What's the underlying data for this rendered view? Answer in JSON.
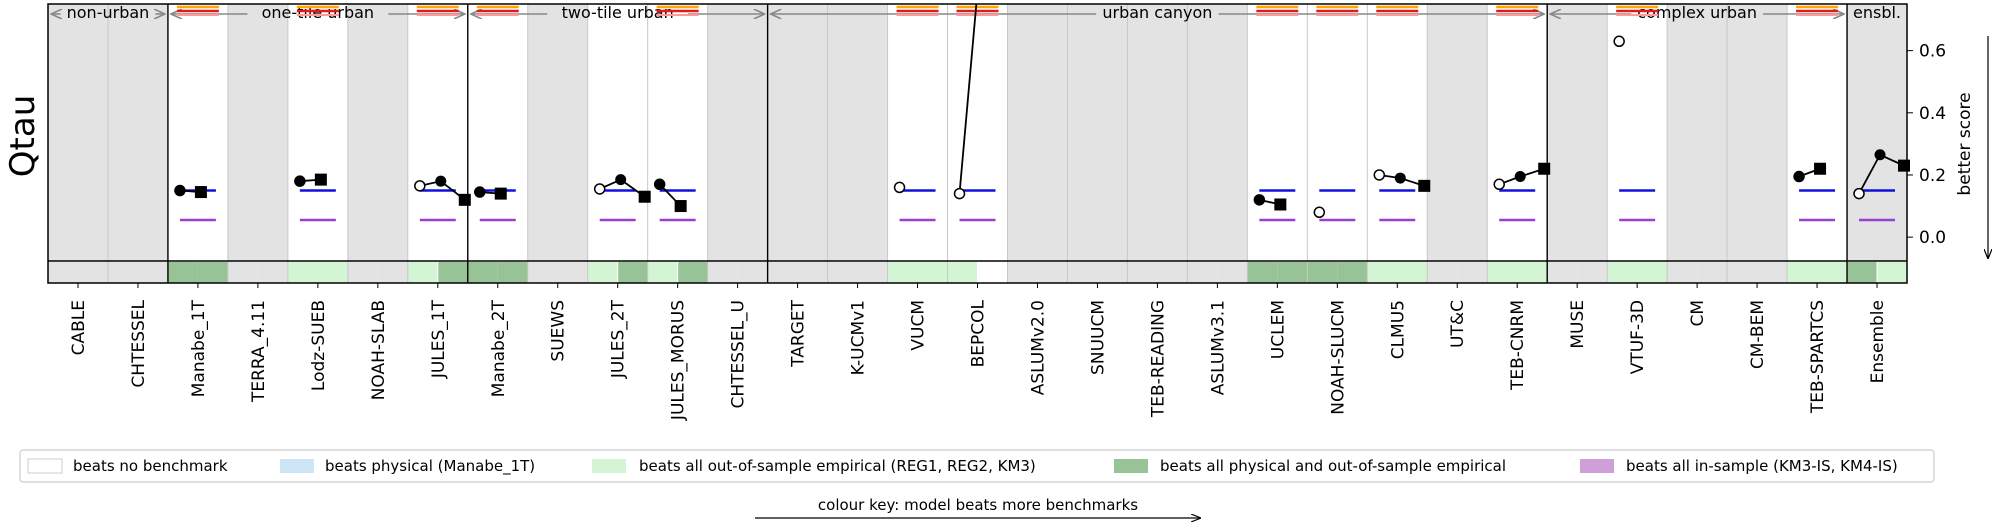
{
  "chart_data": {
    "type": "scatter",
    "ylabel_left": "Qtau",
    "ylabel_right": "better score",
    "ylim": [
      -0.08,
      0.75
    ],
    "yticks": [
      "0.0",
      "0.2",
      "0.4",
      "0.6"
    ],
    "ytick_values": [
      0.0,
      0.2,
      0.4,
      0.6
    ],
    "groups": [
      {
        "label": "non-urban",
        "start": 0,
        "end": 2
      },
      {
        "label": "one-tile urban",
        "start": 2,
        "end": 7
      },
      {
        "label": "two-tile urban",
        "start": 7,
        "end": 12
      },
      {
        "label": "urban canyon",
        "start": 12,
        "end": 25
      },
      {
        "label": "complex urban",
        "start": 25,
        "end": 30
      },
      {
        "label": "ensbl.",
        "start": 30,
        "end": 31
      }
    ],
    "models": [
      {
        "name": "CABLE",
        "bg": "grey",
        "segs": [
          "g",
          "g"
        ],
        "markers": false,
        "p1": null,
        "p2": null,
        "p3": null,
        "p1open": false
      },
      {
        "name": "CHTESSEL",
        "bg": "grey",
        "segs": [
          "g",
          "g"
        ],
        "markers": false,
        "p1": null,
        "p2": null,
        "p3": null,
        "p1open": false
      },
      {
        "name": "Manabe_1T",
        "bg": "white",
        "segs": [
          "d",
          "d"
        ],
        "markers": true,
        "p1": 0.15,
        "p2": 0.145,
        "p3": null,
        "p1open": false
      },
      {
        "name": "TERRA_4.11",
        "bg": "grey",
        "segs": [
          "g",
          "g"
        ],
        "markers": false,
        "p1": null,
        "p2": null,
        "p3": null,
        "p1open": false
      },
      {
        "name": "Lodz-SUEB",
        "bg": "white",
        "segs": [
          "l",
          "l"
        ],
        "markers": true,
        "p1": 0.18,
        "p2": 0.185,
        "p3": null,
        "p1open": false
      },
      {
        "name": "NOAH-SLAB",
        "bg": "grey",
        "segs": [
          "g",
          "g"
        ],
        "markers": false,
        "p1": null,
        "p2": null,
        "p3": null,
        "p1open": false
      },
      {
        "name": "JULES_1T",
        "bg": "white",
        "segs": [
          "l",
          "d"
        ],
        "markers": true,
        "p1": 0.165,
        "p2": 0.18,
        "p3": 0.12,
        "p1open": true
      },
      {
        "name": "Manabe_2T",
        "bg": "white",
        "segs": [
          "d",
          "d"
        ],
        "markers": true,
        "p1": 0.145,
        "p2": 0.14,
        "p3": null,
        "p1open": false
      },
      {
        "name": "SUEWS",
        "bg": "grey",
        "segs": [
          "g",
          "g"
        ],
        "markers": false,
        "p1": null,
        "p2": null,
        "p3": null,
        "p1open": false
      },
      {
        "name": "JULES_2T",
        "bg": "white",
        "segs": [
          "l",
          "d"
        ],
        "markers": true,
        "p1": 0.155,
        "p2": 0.185,
        "p3": 0.13,
        "p1open": true
      },
      {
        "name": "JULES_MORUS",
        "bg": "white",
        "segs": [
          "l",
          "d"
        ],
        "markers": true,
        "p1": 0.17,
        "p2": 0.1,
        "p3": null,
        "p1open": false
      },
      {
        "name": "CHTESSEL_U",
        "bg": "grey",
        "segs": [
          "g",
          "g"
        ],
        "markers": false,
        "p1": null,
        "p2": null,
        "p3": null,
        "p1open": false
      },
      {
        "name": "TARGET",
        "bg": "grey",
        "segs": [
          "g",
          "g"
        ],
        "markers": false,
        "p1": null,
        "p2": null,
        "p3": null,
        "p1open": false
      },
      {
        "name": "K-UCMv1",
        "bg": "grey",
        "segs": [
          "g",
          "g"
        ],
        "markers": false,
        "p1": null,
        "p2": null,
        "p3": null,
        "p1open": false
      },
      {
        "name": "VUCM",
        "bg": "white",
        "segs": [
          "l",
          "l"
        ],
        "markers": true,
        "p1": 0.16,
        "p2": null,
        "p3": null,
        "p1open": true
      },
      {
        "name": "BEPCOL",
        "bg": "white",
        "segs": [
          "l",
          "w"
        ],
        "markers": true,
        "p1": 0.14,
        "p2": 0.9,
        "p3": null,
        "p1open": true
      },
      {
        "name": "ASLUMv2.0",
        "bg": "grey",
        "segs": [
          "g",
          "g"
        ],
        "markers": false,
        "p1": null,
        "p2": null,
        "p3": null,
        "p1open": false
      },
      {
        "name": "SNUUCM",
        "bg": "grey",
        "segs": [
          "g",
          "g"
        ],
        "markers": false,
        "p1": null,
        "p2": null,
        "p3": null,
        "p1open": false
      },
      {
        "name": "TEB-READING",
        "bg": "grey",
        "segs": [
          "g",
          "g"
        ],
        "markers": false,
        "p1": null,
        "p2": null,
        "p3": null,
        "p1open": false
      },
      {
        "name": "ASLUMv3.1",
        "bg": "grey",
        "segs": [
          "g",
          "g"
        ],
        "markers": false,
        "p1": null,
        "p2": null,
        "p3": null,
        "p1open": false
      },
      {
        "name": "UCLEM",
        "bg": "white",
        "segs": [
          "d",
          "d"
        ],
        "markers": true,
        "p1": 0.12,
        "p2": 0.105,
        "p3": null,
        "p1open": false
      },
      {
        "name": "NOAH-SLUCM",
        "bg": "white",
        "segs": [
          "d",
          "d"
        ],
        "markers": true,
        "p1": 0.08,
        "p2": null,
        "p3": null,
        "p1open": true
      },
      {
        "name": "CLMU5",
        "bg": "white",
        "segs": [
          "l",
          "l"
        ],
        "markers": true,
        "p1": 0.2,
        "p2": 0.19,
        "p3": 0.165,
        "p1open": true
      },
      {
        "name": "UT&C",
        "bg": "grey",
        "segs": [
          "g",
          "g"
        ],
        "markers": false,
        "p1": null,
        "p2": null,
        "p3": null,
        "p1open": false
      },
      {
        "name": "TEB-CNRM",
        "bg": "white",
        "segs": [
          "l",
          "l"
        ],
        "markers": true,
        "p1": 0.17,
        "p2": 0.195,
        "p3": 0.22,
        "p1open": true
      },
      {
        "name": "MUSE",
        "bg": "grey",
        "segs": [
          "g",
          "g"
        ],
        "markers": false,
        "p1": null,
        "p2": null,
        "p3": null,
        "p1open": false
      },
      {
        "name": "VTUF-3D",
        "bg": "white",
        "segs": [
          "l",
          "l"
        ],
        "markers": true,
        "p1": 0.63,
        "p2": null,
        "p3": null,
        "p1open": true
      },
      {
        "name": "CM",
        "bg": "grey",
        "segs": [
          "g",
          "g"
        ],
        "markers": false,
        "p1": null,
        "p2": null,
        "p3": null,
        "p1open": false
      },
      {
        "name": "CM-BEM",
        "bg": "grey",
        "segs": [
          "g",
          "g"
        ],
        "markers": false,
        "p1": null,
        "p2": null,
        "p3": null,
        "p1open": false
      },
      {
        "name": "TEB-SPARTCS",
        "bg": "white",
        "segs": [
          "l",
          "l"
        ],
        "markers": true,
        "p1": 0.195,
        "p2": 0.22,
        "p3": null,
        "p1open": false
      },
      {
        "name": "Ensemble",
        "bg": "grey",
        "segs": [
          "d",
          "l"
        ],
        "markers": true,
        "p1": 0.14,
        "p2": 0.265,
        "p3": 0.23,
        "p1open": true
      }
    ],
    "benchmark_levels": {
      "blue": 0.15,
      "purple": 0.055
    },
    "top_markers": [
      2,
      4,
      6,
      7,
      10,
      14,
      15,
      20,
      21,
      22,
      24,
      26,
      29
    ],
    "legend": [
      {
        "label": "beats no benchmark",
        "color": "#ffffff"
      },
      {
        "label": "beats physical (Manabe_1T)",
        "color": "#cce6f7"
      },
      {
        "label": "beats all out-of-sample empirical (REG1, REG2, KM3)",
        "color": "#d3f5d3"
      },
      {
        "label": "beats all physical and out-of-sample empirical",
        "color": "#97c397"
      },
      {
        "label": "beats all in-sample (KM3-IS, KM4-IS)",
        "color": "#cfa0d8"
      }
    ],
    "colour_key": "colour key: model beats more benchmarks",
    "grid": false
  }
}
